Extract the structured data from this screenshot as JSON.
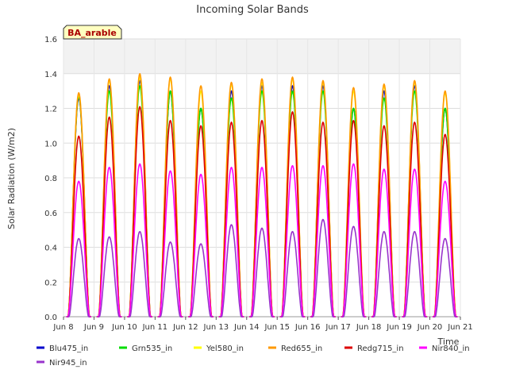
{
  "chart_data": {
    "type": "line",
    "title": "Incoming Solar Bands",
    "ylabel": "Solar Radiation (W/m2)",
    "xlabel": "Time",
    "site_badge": "BA_arable",
    "xlim": [
      "2023-06-08",
      "2023-06-21"
    ],
    "ylim": [
      0.0,
      1.6
    ],
    "yticks": [
      "0.0",
      "0.2",
      "0.4",
      "0.6",
      "0.8",
      "1.0",
      "1.2",
      "1.4",
      "1.6"
    ],
    "xticks": [
      "Jun 8",
      "Jun 9",
      "Jun 10",
      "Jun 11",
      "Jun 12",
      "Jun 13",
      "Jun 14",
      "Jun 15",
      "Jun 16",
      "Jun 17",
      "Jun 18",
      "Jun 19",
      "Jun 20",
      "Jun 21"
    ],
    "grid": true,
    "legend_position": "bottom",
    "days": [
      "2023-06-08",
      "2023-06-09",
      "2023-06-10",
      "2023-06-11",
      "2023-06-12",
      "2023-06-13",
      "2023-06-14",
      "2023-06-15",
      "2023-06-16",
      "2023-06-17",
      "2023-06-18",
      "2023-06-19",
      "2023-06-20"
    ],
    "series": [
      {
        "name": "Blu475_in",
        "color": "#0000cc",
        "daily_peak": [
          1.26,
          1.33,
          1.36,
          1.3,
          1.2,
          1.3,
          1.33,
          1.33,
          1.33,
          1.2,
          1.3,
          1.33,
          1.2
        ]
      },
      {
        "name": "Grn535_in",
        "color": "#00dd00",
        "daily_peak": [
          1.27,
          1.3,
          1.33,
          1.3,
          1.2,
          1.26,
          1.3,
          1.3,
          1.3,
          1.2,
          1.26,
          1.3,
          1.2
        ]
      },
      {
        "name": "Yel580_in",
        "color": "#ffff00",
        "daily_peak": [
          1.28,
          1.36,
          1.38,
          1.37,
          1.3,
          1.34,
          1.35,
          1.37,
          1.35,
          1.3,
          1.33,
          1.35,
          1.29
        ]
      },
      {
        "name": "Red655_in",
        "color": "#ff9900",
        "daily_peak": [
          1.29,
          1.37,
          1.4,
          1.38,
          1.33,
          1.35,
          1.37,
          1.38,
          1.36,
          1.32,
          1.34,
          1.36,
          1.3
        ]
      },
      {
        "name": "Redg715_in",
        "color": "#dd0000",
        "daily_peak": [
          1.04,
          1.15,
          1.21,
          1.13,
          1.1,
          1.12,
          1.13,
          1.18,
          1.12,
          1.13,
          1.1,
          1.12,
          1.05
        ]
      },
      {
        "name": "Nir840_in",
        "color": "#ff00ff",
        "daily_peak": [
          0.78,
          0.86,
          0.88,
          0.84,
          0.82,
          0.86,
          0.86,
          0.87,
          0.87,
          0.88,
          0.85,
          0.85,
          0.78
        ]
      },
      {
        "name": "Nir945_in",
        "color": "#9933cc",
        "daily_peak": [
          0.45,
          0.46,
          0.49,
          0.43,
          0.42,
          0.53,
          0.51,
          0.49,
          0.56,
          0.52,
          0.49,
          0.49,
          0.45
        ]
      }
    ]
  }
}
